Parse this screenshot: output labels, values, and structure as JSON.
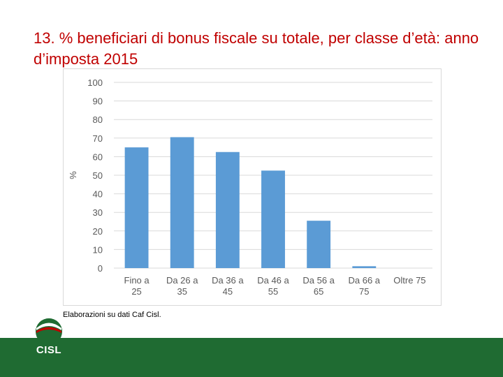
{
  "slide": {
    "title": "13. % beneficiari di bonus fiscale su totale, per classe d’età: anno d’imposta 2015",
    "source": "Elaborazioni su dati Caf Cisl."
  },
  "logo": {
    "text": "CISL",
    "icon": "cisl-logo-icon",
    "colors": {
      "green": "#1f6b32",
      "red": "#c00000",
      "white": "#ffffff"
    }
  },
  "colors": {
    "title": "#c00000",
    "bar": "#5b9bd5",
    "grid": "#d9d9d9",
    "footer": "#1f6b32"
  },
  "chart_data": {
    "type": "bar",
    "title": "",
    "xlabel": "",
    "ylabel": "%",
    "ylim": [
      0,
      100
    ],
    "yticks": [
      0,
      10,
      20,
      30,
      40,
      50,
      60,
      70,
      80,
      90,
      100
    ],
    "grid": true,
    "legend": "none",
    "categories": [
      [
        "Fino a",
        "25"
      ],
      [
        "Da 26 a",
        "35"
      ],
      [
        "Da 36 a",
        "45"
      ],
      [
        "Da 46 a",
        "55"
      ],
      [
        "Da 56 a",
        "65"
      ],
      [
        "Da 66 a",
        "75"
      ],
      [
        "Oltre 75"
      ]
    ],
    "values": [
      65,
      70.5,
      62.5,
      52.5,
      25.5,
      1,
      0
    ]
  }
}
